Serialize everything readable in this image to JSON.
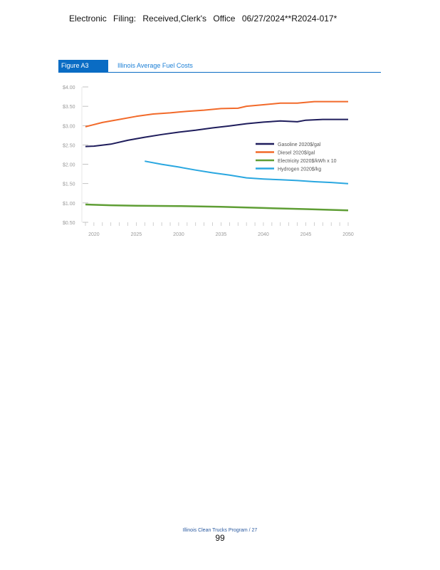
{
  "header": {
    "stamp": "Electronic Filing: Received,Clerk's Office 06/27/2024**R2024-017*"
  },
  "figure": {
    "tag": "Figure A3",
    "title": "Illinois Average Fuel Costs"
  },
  "chart_data": {
    "type": "line",
    "title": "Illinois Average Fuel Costs",
    "xlim": [
      2019,
      2050
    ],
    "ylim": [
      0.5,
      4.0
    ],
    "x_ticks": [
      "2020",
      "2025",
      "2030",
      "2035",
      "2040",
      "2045",
      "2050"
    ],
    "y_ticks": [
      "$4.00",
      "$3.50",
      "$3.00",
      "$2.50",
      "$2.00",
      "$1.50",
      "$1.00",
      "$0.50"
    ],
    "legend_position": "right",
    "series": [
      {
        "name": "Gasoline 2020$/gal",
        "color": "#1f1d5c",
        "x": [
          2019,
          2020,
          2022,
          2024,
          2026,
          2028,
          2030,
          2032,
          2034,
          2036,
          2038,
          2040,
          2042,
          2044,
          2045,
          2047,
          2050
        ],
        "y": [
          2.46,
          2.47,
          2.52,
          2.62,
          2.7,
          2.77,
          2.83,
          2.88,
          2.94,
          2.99,
          3.05,
          3.09,
          3.12,
          3.1,
          3.14,
          3.16,
          3.16
        ]
      },
      {
        "name": "Diesel 2020$/gal",
        "color": "#f26a2a",
        "x": [
          2019,
          2021,
          2023,
          2025,
          2027,
          2029,
          2031,
          2033,
          2035,
          2037,
          2038,
          2040,
          2042,
          2044,
          2046,
          2050
        ],
        "y": [
          2.97,
          3.08,
          3.16,
          3.24,
          3.3,
          3.33,
          3.37,
          3.4,
          3.44,
          3.45,
          3.5,
          3.54,
          3.58,
          3.58,
          3.62,
          3.62
        ]
      },
      {
        "name": "Electricity 2020$/kWh x 10",
        "color": "#5f9e35",
        "x": [
          2019,
          2022,
          2025,
          2030,
          2035,
          2040,
          2045,
          2050
        ],
        "y": [
          0.96,
          0.94,
          0.93,
          0.92,
          0.9,
          0.87,
          0.84,
          0.81
        ]
      },
      {
        "name": "Hydrogen 2020$/kg",
        "color": "#2aa7e0",
        "x": [
          2026,
          2028,
          2030,
          2032,
          2034,
          2036,
          2038,
          2040,
          2042,
          2044,
          2046,
          2048,
          2050
        ],
        "y": [
          2.08,
          2.0,
          1.93,
          1.85,
          1.78,
          1.72,
          1.65,
          1.62,
          1.6,
          1.58,
          1.55,
          1.53,
          1.5
        ]
      }
    ]
  },
  "footer": {
    "program": "Illinois Clean Trucks Program / 27",
    "page": "99"
  }
}
